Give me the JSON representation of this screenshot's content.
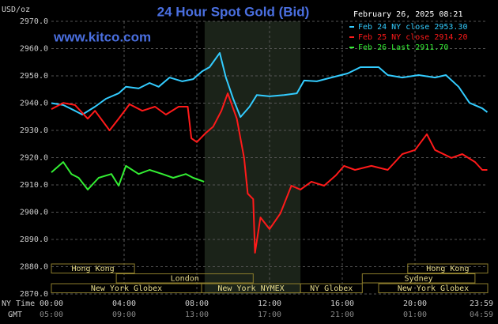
{
  "chart_data": {
    "type": "line",
    "title": "24 Hour Spot Gold (Bid)",
    "timestamp": "February 26, 2025 08:21",
    "y_label": "USD/oz",
    "watermark": "www.kitco.com",
    "x_label_primary": "NY Time",
    "x_label_secondary": "GMT",
    "xlim": [
      0,
      24
    ],
    "xticks": [
      {
        "value": 0,
        "label": "00:00"
      },
      {
        "value": 4,
        "label": "04:00"
      },
      {
        "value": 8,
        "label": "08:00"
      },
      {
        "value": 12,
        "label": "12:00"
      },
      {
        "value": 16,
        "label": "16:00"
      },
      {
        "value": 20,
        "label": "20:00"
      },
      {
        "value": 23.983,
        "label": "23:59"
      }
    ],
    "xticks_secondary": [
      "05:00",
      "09:00",
      "13:00",
      "17:00",
      "21:00",
      "01:00",
      "04:59"
    ],
    "ylim": [
      2870,
      2970
    ],
    "yticks": [
      {
        "value": 2870,
        "label": "2870.0"
      },
      {
        "value": 2880,
        "label": "2880.0"
      },
      {
        "value": 2890,
        "label": "2890.0"
      },
      {
        "value": 2900,
        "label": "2900.0"
      },
      {
        "value": 2910,
        "label": "2910.0"
      },
      {
        "value": 2920,
        "label": "2920.0"
      },
      {
        "value": 2930,
        "label": "2930.0"
      },
      {
        "value": 2940,
        "label": "2940.0"
      },
      {
        "value": 2950,
        "label": "2950.0"
      },
      {
        "value": 2960,
        "label": "2960.0"
      },
      {
        "value": 2970,
        "label": "2970.0"
      }
    ],
    "grid": true,
    "shaded_x": [
      8.43,
      13.7
    ],
    "sessions": [
      {
        "label": "Hong Kong",
        "start": 0,
        "end": 4.57,
        "row": 0
      },
      {
        "label": "Hong Kong",
        "start": 19.6,
        "end": 24,
        "row": 0
      },
      {
        "label": "London",
        "start": 3.57,
        "end": 11.1,
        "row": 1
      },
      {
        "label": "Sydney",
        "start": 17.1,
        "end": 23.3,
        "row": 1
      },
      {
        "label": "New York Globex",
        "start": 0,
        "end": 8.26,
        "row": 2
      },
      {
        "label": "New York NYMEX",
        "start": 8.26,
        "end": 13.7,
        "row": 2
      },
      {
        "label": "NY Globex",
        "start": 13.7,
        "end": 17.1,
        "row": 2
      },
      {
        "label": "New York Globex",
        "start": 18,
        "end": 24,
        "row": 2
      }
    ],
    "series": [
      {
        "name": "Feb 24 NY close 2953.30",
        "color": "#33ccff",
        "x": [
          0,
          0.65,
          1.3,
          1.7,
          2.4,
          3.0,
          3.7,
          4.1,
          4.8,
          5.4,
          5.9,
          6.5,
          7.2,
          7.8,
          8.3,
          8.7,
          9.26,
          9.6,
          10.0,
          10.4,
          10.9,
          11.3,
          12.0,
          12.8,
          13.5,
          13.9,
          14.6,
          15.4,
          16.3,
          17.0,
          18.0,
          18.5,
          19.3,
          20.2,
          21.1,
          21.7,
          22.4,
          23.0,
          23.7,
          23.98
        ],
        "values": [
          2940.0,
          2939.3,
          2937.2,
          2935.8,
          2938.7,
          2941.6,
          2943.6,
          2946.0,
          2945.4,
          2947.4,
          2946.0,
          2949.4,
          2948.0,
          2948.8,
          2951.7,
          2953.2,
          2958.4,
          2949.4,
          2941.6,
          2934.9,
          2938.7,
          2943.0,
          2942.5,
          2943.0,
          2943.6,
          2948.3,
          2948.0,
          2949.4,
          2950.9,
          2953.2,
          2953.2,
          2950.3,
          2949.4,
          2950.3,
          2949.4,
          2950.3,
          2946.0,
          2940.1,
          2938.1,
          2936.7
        ]
      },
      {
        "name": "Feb 25 NY close 2914.20",
        "color": "#ff1a1a",
        "x": [
          0,
          0.65,
          1.3,
          2.0,
          2.4,
          3.2,
          3.7,
          4.3,
          5.0,
          5.7,
          6.3,
          7.0,
          7.5,
          7.7,
          8.0,
          8.5,
          8.9,
          9.35,
          9.7,
          10.2,
          10.6,
          10.8,
          11.1,
          11.2,
          11.5,
          12.0,
          12.6,
          13.2,
          13.7,
          14.3,
          15.0,
          15.65,
          16.1,
          16.7,
          17.6,
          18.5,
          19.3,
          20.0,
          20.65,
          21.1,
          22.0,
          22.6,
          23.3,
          23.7,
          23.98
        ],
        "values": [
          2937.8,
          2940.1,
          2939.3,
          2934.3,
          2937.2,
          2930.0,
          2934.3,
          2939.6,
          2937.2,
          2938.7,
          2935.8,
          2938.7,
          2938.7,
          2927.1,
          2925.7,
          2929.1,
          2931.4,
          2937.2,
          2943.6,
          2934.3,
          2919.9,
          2906.8,
          2904.8,
          2885.1,
          2898.1,
          2893.8,
          2899.6,
          2909.7,
          2908.3,
          2911.2,
          2909.7,
          2913.5,
          2917.0,
          2915.5,
          2917.0,
          2915.5,
          2921.3,
          2922.8,
          2928.6,
          2922.8,
          2919.9,
          2921.3,
          2918.4,
          2915.5,
          2915.5
        ]
      },
      {
        "name": "Feb 26 Last 2911.70",
        "color": "#33ee33",
        "x": [
          0,
          0.65,
          1.1,
          1.5,
          2.0,
          2.6,
          3.3,
          3.7,
          4.1,
          4.8,
          5.4,
          6.1,
          6.7,
          7.4,
          7.8,
          8.4
        ],
        "values": [
          2914.6,
          2918.4,
          2914.0,
          2912.6,
          2908.3,
          2912.6,
          2914.0,
          2909.7,
          2917.0,
          2914.0,
          2915.5,
          2914.0,
          2912.6,
          2914.0,
          2912.6,
          2911.2
        ]
      }
    ]
  }
}
